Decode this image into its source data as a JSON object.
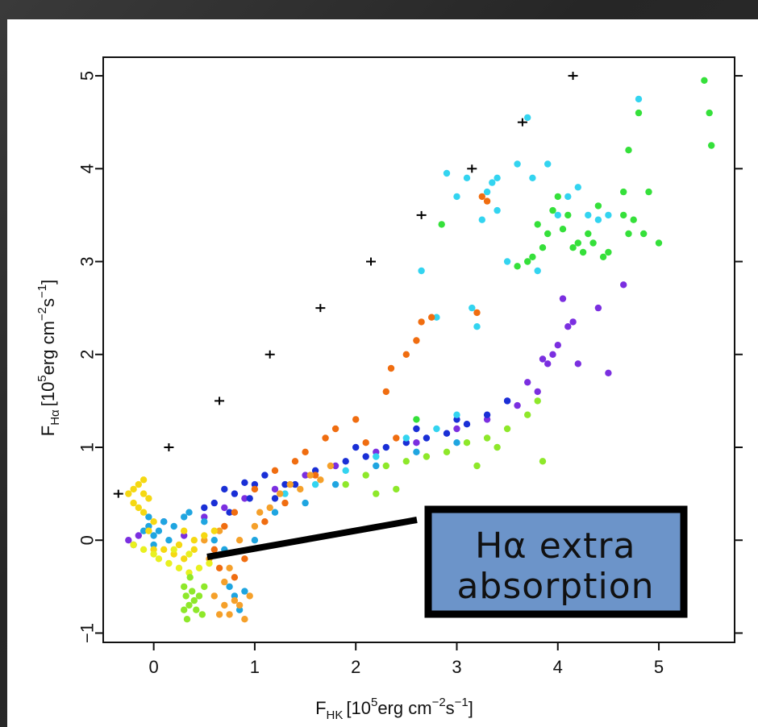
{
  "chart_data": {
    "type": "scatter",
    "title": "",
    "xlabel_main": "F",
    "xlabel_sub": "HK",
    "xlabel_unit_prefix": "[10",
    "xlabel_unit_exp1": "5",
    "xlabel_unit_mid": "erg cm",
    "xlabel_unit_exp2": "−2",
    "xlabel_unit_mid2": "s",
    "xlabel_unit_exp3": "−1",
    "xlabel_unit_end": "]",
    "ylabel_main": "F",
    "ylabel_sub": "Hα",
    "xlim": [
      -0.5,
      5.75
    ],
    "ylim": [
      -1.1,
      5.2
    ],
    "xticks": [
      "0",
      "1",
      "2",
      "3",
      "4",
      "5"
    ],
    "yticks": [
      "−1",
      "0",
      "1",
      "2",
      "3",
      "4",
      "5"
    ],
    "xtick_values": [
      0,
      1,
      2,
      3,
      4,
      5
    ],
    "ytick_values": [
      -1,
      0,
      1,
      2,
      3,
      4,
      5
    ],
    "reference_crosses": {
      "x": [
        -0.35,
        0.15,
        0.65,
        1.15,
        1.65,
        2.15,
        2.65,
        3.15,
        3.65,
        4.15
      ],
      "y": [
        0.5,
        1.0,
        1.5,
        2.0,
        2.5,
        3.0,
        3.5,
        4.0,
        4.5,
        5.0
      ]
    },
    "series": [
      {
        "color": "#7b2fe0",
        "points": [
          [
            -0.25,
            0.0
          ],
          [
            -0.2,
            -0.05
          ],
          [
            -0.15,
            0.05
          ],
          [
            0.1,
            0.2
          ],
          [
            0.3,
            0.05
          ],
          [
            0.5,
            0.25
          ],
          [
            0.7,
            0.35
          ],
          [
            0.9,
            0.45
          ],
          [
            1.2,
            0.55
          ],
          [
            1.5,
            0.7
          ],
          [
            1.8,
            0.8
          ],
          [
            2.2,
            0.95
          ],
          [
            2.6,
            1.05
          ],
          [
            3.0,
            1.2
          ],
          [
            3.3,
            1.3
          ],
          [
            3.6,
            1.45
          ],
          [
            3.8,
            1.6
          ],
          [
            3.9,
            1.9
          ],
          [
            3.95,
            2.0
          ],
          [
            4.1,
            2.3
          ],
          [
            4.15,
            2.35
          ],
          [
            4.2,
            1.9
          ],
          [
            4.05,
            2.6
          ],
          [
            4.5,
            1.8
          ],
          [
            4.65,
            2.75
          ],
          [
            4.4,
            2.5
          ],
          [
            4.0,
            2.1
          ],
          [
            3.85,
            1.95
          ],
          [
            3.7,
            1.7
          ],
          [
            3.5,
            1.5
          ]
        ]
      },
      {
        "color": "#1a2fd6",
        "points": [
          [
            0.5,
            0.35
          ],
          [
            0.6,
            0.4
          ],
          [
            0.7,
            0.55
          ],
          [
            0.8,
            0.5
          ],
          [
            0.9,
            0.62
          ],
          [
            1.0,
            0.6
          ],
          [
            1.1,
            0.7
          ],
          [
            1.3,
            0.6
          ],
          [
            1.6,
            0.75
          ],
          [
            1.9,
            0.85
          ],
          [
            2.1,
            0.9
          ],
          [
            2.3,
            1.0
          ],
          [
            2.5,
            1.05
          ],
          [
            2.7,
            1.1
          ],
          [
            2.9,
            1.15
          ],
          [
            3.1,
            1.25
          ],
          [
            3.3,
            1.35
          ],
          [
            3.5,
            1.5
          ],
          [
            0.75,
            0.3
          ],
          [
            0.95,
            0.45
          ],
          [
            1.2,
            0.45
          ],
          [
            1.4,
            0.6
          ],
          [
            2.0,
            1.0
          ],
          [
            2.6,
            1.2
          ],
          [
            3.0,
            1.3
          ]
        ]
      },
      {
        "color": "#1fa5e0",
        "points": [
          [
            -0.1,
            0.1
          ],
          [
            -0.05,
            0.15
          ],
          [
            0.0,
            0.05
          ],
          [
            0.05,
            0.1
          ],
          [
            0.1,
            0.2
          ],
          [
            0.15,
            0.0
          ],
          [
            -0.05,
            0.25
          ],
          [
            0.0,
            -0.05
          ],
          [
            0.2,
            0.15
          ],
          [
            0.3,
            0.25
          ],
          [
            0.35,
            0.3
          ],
          [
            0.5,
            0.2
          ],
          [
            0.6,
            0.0
          ],
          [
            0.7,
            -0.1
          ],
          [
            0.8,
            -0.6
          ],
          [
            0.75,
            -0.5
          ],
          [
            0.85,
            -0.75
          ],
          [
            0.9,
            -0.55
          ],
          [
            1.0,
            0.0
          ],
          [
            1.2,
            0.3
          ],
          [
            1.5,
            0.4
          ],
          [
            1.8,
            0.6
          ],
          [
            2.2,
            0.8
          ],
          [
            2.6,
            0.95
          ],
          [
            3.0,
            1.05
          ]
        ]
      },
      {
        "color": "#33d4f0",
        "points": [
          [
            2.65,
            2.9
          ],
          [
            2.8,
            2.4
          ],
          [
            2.9,
            3.95
          ],
          [
            3.0,
            3.7
          ],
          [
            3.1,
            3.9
          ],
          [
            3.2,
            2.3
          ],
          [
            3.25,
            3.45
          ],
          [
            3.3,
            3.75
          ],
          [
            3.35,
            3.85
          ],
          [
            3.4,
            3.9
          ],
          [
            3.5,
            3.0
          ],
          [
            3.6,
            4.05
          ],
          [
            3.7,
            4.55
          ],
          [
            3.75,
            3.9
          ],
          [
            3.8,
            2.9
          ],
          [
            3.9,
            4.05
          ],
          [
            4.0,
            3.5
          ],
          [
            4.1,
            3.7
          ],
          [
            4.2,
            3.8
          ],
          [
            4.3,
            3.5
          ],
          [
            4.4,
            3.45
          ],
          [
            4.5,
            3.5
          ],
          [
            4.8,
            4.75
          ],
          [
            3.15,
            2.5
          ],
          [
            3.4,
            3.55
          ],
          [
            2.5,
            1.1
          ],
          [
            2.8,
            1.2
          ],
          [
            3.0,
            1.35
          ],
          [
            2.2,
            0.9
          ],
          [
            1.9,
            0.75
          ],
          [
            1.6,
            0.6
          ],
          [
            1.3,
            0.5
          ]
        ]
      },
      {
        "color": "#f06d10",
        "points": [
          [
            2.3,
            1.6
          ],
          [
            2.35,
            1.85
          ],
          [
            2.5,
            2.0
          ],
          [
            2.6,
            2.15
          ],
          [
            2.65,
            2.35
          ],
          [
            2.75,
            2.4
          ],
          [
            3.2,
            2.45
          ],
          [
            3.25,
            3.7
          ],
          [
            3.3,
            3.65
          ],
          [
            2.0,
            1.3
          ],
          [
            1.8,
            1.2
          ],
          [
            1.7,
            1.1
          ],
          [
            1.5,
            0.95
          ],
          [
            1.4,
            0.85
          ],
          [
            1.2,
            0.75
          ],
          [
            1.0,
            0.55
          ],
          [
            0.8,
            0.3
          ],
          [
            0.7,
            0.15
          ],
          [
            0.6,
            -0.1
          ],
          [
            0.65,
            -0.3
          ],
          [
            0.8,
            -0.4
          ],
          [
            0.9,
            -0.2
          ],
          [
            1.1,
            0.2
          ],
          [
            1.3,
            0.4
          ],
          [
            1.6,
            0.7
          ],
          [
            2.1,
            1.05
          ],
          [
            2.4,
            1.1
          ]
        ]
      },
      {
        "color": "#f5a02a",
        "points": [
          [
            0.6,
            -0.6
          ],
          [
            0.65,
            -0.8
          ],
          [
            0.7,
            -0.7
          ],
          [
            0.75,
            -0.8
          ],
          [
            0.8,
            -0.65
          ],
          [
            0.85,
            -0.7
          ],
          [
            0.9,
            -0.85
          ],
          [
            0.95,
            -0.6
          ],
          [
            0.7,
            -0.45
          ],
          [
            0.75,
            -0.3
          ],
          [
            0.85,
            0.0
          ],
          [
            1.0,
            0.15
          ],
          [
            1.05,
            0.3
          ],
          [
            1.15,
            0.35
          ],
          [
            1.25,
            0.5
          ],
          [
            1.35,
            0.6
          ],
          [
            1.45,
            0.55
          ],
          [
            1.55,
            0.7
          ],
          [
            1.65,
            0.65
          ],
          [
            1.75,
            0.8
          ],
          [
            0.55,
            -0.2
          ],
          [
            0.5,
            0.0
          ],
          [
            0.65,
            0.1
          ]
        ]
      },
      {
        "color": "#f5d812",
        "points": [
          [
            -0.2,
            0.55
          ],
          [
            -0.15,
            0.6
          ],
          [
            -0.1,
            0.5
          ],
          [
            -0.05,
            0.45
          ],
          [
            -0.2,
            0.4
          ],
          [
            -0.15,
            0.35
          ],
          [
            -0.1,
            0.3
          ],
          [
            0.0,
            0.2
          ],
          [
            0.1,
            -0.1
          ],
          [
            0.2,
            -0.15
          ],
          [
            0.3,
            -0.2
          ],
          [
            0.4,
            -0.1
          ],
          [
            0.5,
            0.05
          ],
          [
            0.6,
            0.1
          ],
          [
            0.4,
            0.0
          ],
          [
            0.25,
            -0.05
          ],
          [
            -0.05,
            0.1
          ],
          [
            0.0,
            -0.1
          ],
          [
            0.3,
            0.1
          ],
          [
            -0.25,
            0.5
          ],
          [
            -0.1,
            0.65
          ]
        ]
      },
      {
        "color": "#e8f020",
        "points": [
          [
            -0.2,
            -0.05
          ],
          [
            -0.1,
            -0.1
          ],
          [
            0.0,
            -0.15
          ],
          [
            0.05,
            -0.2
          ],
          [
            0.15,
            -0.25
          ],
          [
            0.25,
            -0.3
          ],
          [
            0.35,
            -0.35
          ],
          [
            0.45,
            -0.3
          ],
          [
            0.55,
            -0.25
          ],
          [
            0.2,
            -0.1
          ],
          [
            0.35,
            -0.15
          ]
        ]
      },
      {
        "color": "#8ee82a",
        "points": [
          [
            0.3,
            -0.5
          ],
          [
            0.32,
            -0.6
          ],
          [
            0.35,
            -0.7
          ],
          [
            0.38,
            -0.55
          ],
          [
            0.4,
            -0.65
          ],
          [
            0.42,
            -0.75
          ],
          [
            0.45,
            -0.6
          ],
          [
            0.48,
            -0.8
          ],
          [
            0.3,
            -0.75
          ],
          [
            0.33,
            -0.85
          ],
          [
            0.36,
            -0.4
          ],
          [
            0.5,
            -0.5
          ],
          [
            1.9,
            0.6
          ],
          [
            2.1,
            0.7
          ],
          [
            2.3,
            0.8
          ],
          [
            2.5,
            0.85
          ],
          [
            2.7,
            0.9
          ],
          [
            2.9,
            0.95
          ],
          [
            3.1,
            1.05
          ],
          [
            3.3,
            1.1
          ],
          [
            3.5,
            1.2
          ],
          [
            3.7,
            1.35
          ],
          [
            3.8,
            1.5
          ],
          [
            3.85,
            0.85
          ],
          [
            2.4,
            0.55
          ],
          [
            2.2,
            0.5
          ],
          [
            3.2,
            0.8
          ],
          [
            3.4,
            1.0
          ]
        ]
      },
      {
        "color": "#35e03a",
        "points": [
          [
            3.6,
            2.95
          ],
          [
            3.7,
            3.0
          ],
          [
            3.8,
            3.4
          ],
          [
            3.85,
            3.15
          ],
          [
            3.9,
            3.3
          ],
          [
            3.95,
            3.55
          ],
          [
            4.0,
            3.7
          ],
          [
            4.05,
            3.35
          ],
          [
            4.1,
            3.5
          ],
          [
            4.15,
            3.15
          ],
          [
            4.2,
            3.2
          ],
          [
            4.25,
            3.1
          ],
          [
            4.3,
            3.3
          ],
          [
            4.35,
            3.2
          ],
          [
            4.4,
            3.6
          ],
          [
            4.45,
            3.05
          ],
          [
            4.5,
            3.1
          ],
          [
            4.65,
            3.5
          ],
          [
            4.7,
            3.3
          ],
          [
            4.75,
            3.45
          ],
          [
            4.8,
            4.6
          ],
          [
            4.85,
            3.3
          ],
          [
            4.9,
            3.75
          ],
          [
            5.0,
            3.2
          ],
          [
            5.45,
            4.95
          ],
          [
            5.5,
            4.6
          ],
          [
            5.52,
            4.25
          ],
          [
            4.7,
            4.2
          ],
          [
            4.65,
            3.75
          ],
          [
            3.75,
            3.05
          ],
          [
            2.85,
            3.4
          ],
          [
            2.6,
            1.3
          ]
        ]
      }
    ]
  },
  "annotation": {
    "line1_prefix": "H",
    "line1_rest": "α extra",
    "line2": "absorption"
  }
}
